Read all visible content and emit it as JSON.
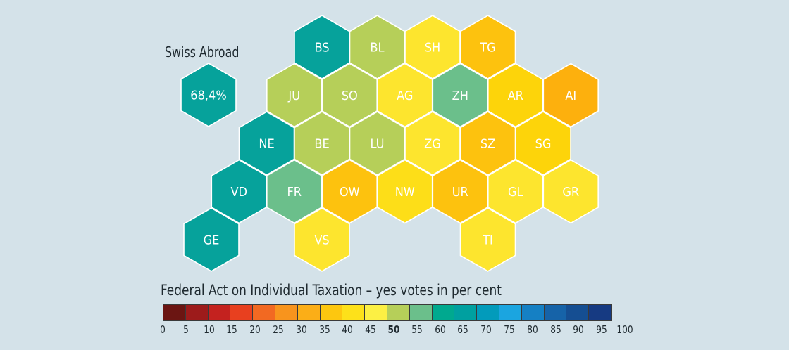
{
  "swiss_abroad": {
    "label": "Swiss Abroad",
    "value": "68,4%",
    "color": "#06a29b"
  },
  "legend": {
    "title": "Federal Act on Individual Taxation – yes votes in per cent",
    "colors": [
      "#6b1512",
      "#9d1b1b",
      "#c4221f",
      "#e8401f",
      "#f26922",
      "#f8941d",
      "#fbae17",
      "#fdc70f",
      "#fde11a",
      "#fcf044",
      "#b6cf59",
      "#6bbf8b",
      "#00a98f",
      "#00a0a0",
      "#029bbb",
      "#1ba5e0",
      "#1580c4",
      "#1663a8",
      "#154e92",
      "#163a82"
    ],
    "ticks": [
      "0",
      "5",
      "10",
      "15",
      "20",
      "25",
      "30",
      "35",
      "40",
      "45",
      "50",
      "55",
      "60",
      "65",
      "70",
      "75",
      "80",
      "85",
      "90",
      "95",
      "100"
    ],
    "bold_tick": "50"
  },
  "cantons": [
    {
      "code": "BS",
      "col": 0,
      "row": 0,
      "color": "#06a29b"
    },
    {
      "code": "BL",
      "col": 1,
      "row": 0,
      "color": "#b6cf59"
    },
    {
      "code": "SH",
      "col": 2,
      "row": 0,
      "color": "#fde52e"
    },
    {
      "code": "TG",
      "col": 3,
      "row": 0,
      "color": "#fdc20e"
    },
    {
      "code": "JU",
      "col": -0.5,
      "row": 1,
      "color": "#b6cf59"
    },
    {
      "code": "SO",
      "col": 0.5,
      "row": 1,
      "color": "#b6cf59"
    },
    {
      "code": "AG",
      "col": 1.5,
      "row": 1,
      "color": "#fde52e"
    },
    {
      "code": "ZH",
      "col": 2.5,
      "row": 1,
      "color": "#6bbf8b"
    },
    {
      "code": "AR",
      "col": 3.5,
      "row": 1,
      "color": "#fdd40a"
    },
    {
      "code": "AI",
      "col": 4.5,
      "row": 1,
      "color": "#fdb00d"
    },
    {
      "code": "NE",
      "col": -1,
      "row": 2,
      "color": "#06a29b"
    },
    {
      "code": "BE",
      "col": 0,
      "row": 2,
      "color": "#b6cf59"
    },
    {
      "code": "LU",
      "col": 1,
      "row": 2,
      "color": "#b6cf59"
    },
    {
      "code": "ZG",
      "col": 2,
      "row": 2,
      "color": "#fde52e"
    },
    {
      "code": "SZ",
      "col": 3,
      "row": 2,
      "color": "#fdc20e"
    },
    {
      "code": "SG",
      "col": 4,
      "row": 2,
      "color": "#fdd40a"
    },
    {
      "code": "VD",
      "col": -1.5,
      "row": 3,
      "color": "#06a29b"
    },
    {
      "code": "FR",
      "col": -0.5,
      "row": 3,
      "color": "#6bbf8b"
    },
    {
      "code": "OW",
      "col": 0.5,
      "row": 3,
      "color": "#fdc20e"
    },
    {
      "code": "NW",
      "col": 1.5,
      "row": 3,
      "color": "#fdde18"
    },
    {
      "code": "UR",
      "col": 2.5,
      "row": 3,
      "color": "#fdc20e"
    },
    {
      "code": "GL",
      "col": 3.5,
      "row": 3,
      "color": "#fde52e"
    },
    {
      "code": "GR",
      "col": 4.5,
      "row": 3,
      "color": "#fde52e"
    },
    {
      "code": "GE",
      "col": -2,
      "row": 4,
      "color": "#06a29b"
    },
    {
      "code": "VS",
      "col": 0,
      "row": 4,
      "color": "#fde52e"
    },
    {
      "code": "TI",
      "col": 3,
      "row": 4,
      "color": "#fde52e"
    }
  ]
}
